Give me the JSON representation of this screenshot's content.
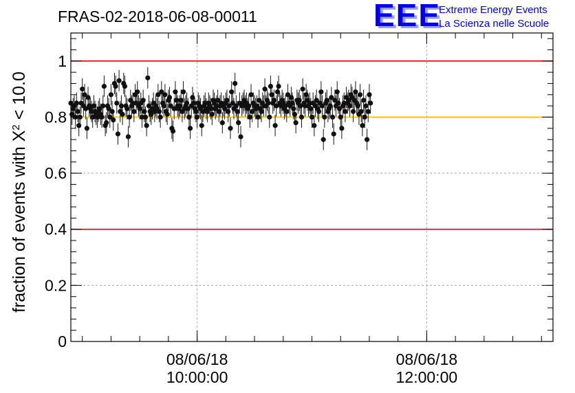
{
  "chart_data": {
    "type": "scatter",
    "title": "FRAS-02-2018-06-08-00011",
    "ylabel_main": "fraction of events with Χ",
    "ylabel_sup": "2",
    "ylabel_tail": " < 10.0",
    "xlabel": "",
    "ylim": [
      0,
      1.1
    ],
    "yticks": [
      0,
      0.2,
      0.4,
      0.6,
      0.8,
      1
    ],
    "ytick_labels": [
      "0",
      "0.2",
      "0.4",
      "0.6",
      "0.8",
      "1"
    ],
    "xlim_hours": [
      8.9,
      13.1
    ],
    "xticks": [
      {
        "hour": 10,
        "date": "08/06/18",
        "time": "10:00:00"
      },
      {
        "hour": 12,
        "date": "08/06/18",
        "time": "12:00:00"
      }
    ],
    "reference_lines": [
      {
        "y": 1.0,
        "color": "#e00000"
      },
      {
        "y": 0.4,
        "color": "#e00000"
      },
      {
        "y": 0.8,
        "color": "#ffb800"
      }
    ],
    "grid": true,
    "series": [
      {
        "marker_color": "#111111",
        "error": 0.038,
        "x_start_hour": 8.9,
        "x_step_hour": 0.01,
        "y": [
          0.85,
          0.81,
          0.83,
          0.84,
          0.8,
          0.85,
          0.82,
          0.77,
          0.8,
          0.85,
          0.9,
          0.84,
          0.88,
          0.83,
          0.76,
          0.87,
          0.84,
          0.83,
          0.82,
          0.8,
          0.84,
          0.82,
          0.81,
          0.8,
          0.82,
          0.83,
          0.81,
          0.8,
          0.84,
          0.91,
          0.77,
          0.78,
          0.84,
          0.83,
          0.8,
          0.88,
          0.82,
          0.79,
          0.92,
          0.91,
          0.85,
          0.74,
          0.93,
          0.82,
          0.84,
          0.81,
          0.92,
          0.91,
          0.84,
          0.83,
          0.73,
          0.8,
          0.86,
          0.84,
          0.85,
          0.82,
          0.88,
          0.85,
          0.89,
          0.84,
          0.83,
          0.85,
          0.8,
          0.86,
          0.82,
          0.8,
          0.77,
          0.94,
          0.84,
          0.82,
          0.81,
          0.83,
          0.85,
          0.82,
          0.84,
          0.83,
          0.88,
          0.82,
          0.8,
          0.89,
          0.85,
          0.84,
          0.88,
          0.82,
          0.81,
          0.86,
          0.87,
          0.84,
          0.76,
          0.75,
          0.83,
          0.89,
          0.86,
          0.84,
          0.83,
          0.84,
          0.86,
          0.82,
          0.89,
          0.83,
          0.84,
          0.85,
          0.83,
          0.8,
          0.76,
          0.84,
          0.87,
          0.85,
          0.83,
          0.82,
          0.8,
          0.85,
          0.84,
          0.83,
          0.77,
          0.82,
          0.84,
          0.85,
          0.83,
          0.82,
          0.85,
          0.84,
          0.83,
          0.81,
          0.86,
          0.85,
          0.83,
          0.84,
          0.86,
          0.82,
          0.84,
          0.85,
          0.78,
          0.84,
          0.83,
          0.85,
          0.86,
          0.82,
          0.84,
          0.76,
          0.89,
          0.85,
          0.83,
          0.92,
          0.84,
          0.82,
          0.78,
          0.85,
          0.73,
          0.84,
          0.85,
          0.86,
          0.84,
          0.85,
          0.83,
          0.84,
          0.8,
          0.88,
          0.82,
          0.85,
          0.84,
          0.83,
          0.84,
          0.8,
          0.86,
          0.83,
          0.82,
          0.85,
          0.84,
          0.9,
          0.84,
          0.86,
          0.85,
          0.8,
          0.91,
          0.88,
          0.85,
          0.86,
          0.77,
          0.84,
          0.89,
          0.91,
          0.85,
          0.84,
          0.86,
          0.85,
          0.83,
          0.84,
          0.82,
          0.88,
          0.85,
          0.84,
          0.87,
          0.85,
          0.83,
          0.81,
          0.78,
          0.86,
          0.85,
          0.86,
          0.84,
          0.8,
          0.9,
          0.85,
          0.84,
          0.88,
          0.86,
          0.84,
          0.85,
          0.83,
          0.8,
          0.85,
          0.77,
          0.84,
          0.86,
          0.83,
          0.82,
          0.85,
          0.89,
          0.84,
          0.72,
          0.8,
          0.85,
          0.86,
          0.82,
          0.83,
          0.84,
          0.87,
          0.8,
          0.74,
          0.86,
          0.84,
          0.89,
          0.85,
          0.83,
          0.8,
          0.76,
          0.84,
          0.85,
          0.82,
          0.87,
          0.85,
          0.86,
          0.84,
          0.88,
          0.87,
          0.82,
          0.86,
          0.89,
          0.85,
          0.84,
          0.81,
          0.88,
          0.82,
          0.77,
          0.86,
          0.8,
          0.84,
          0.72,
          0.82,
          0.88,
          0.85
        ]
      }
    ]
  },
  "logo": {
    "letters": "EEE",
    "line1": "Extreme Energy Events",
    "line2": "La Scienza nelle Scuole"
  }
}
